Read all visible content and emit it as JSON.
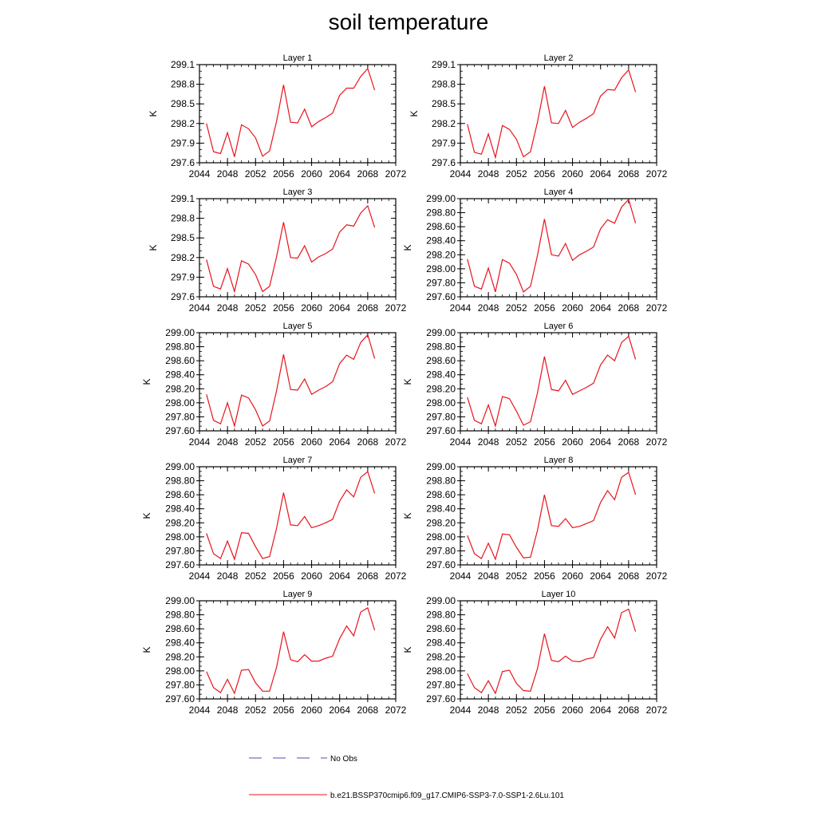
{
  "figure": {
    "title": "soil temperature"
  },
  "legend": {
    "entries": [
      {
        "label": "No Obs",
        "color": "#4d4dcc",
        "style": "dashed"
      },
      {
        "label": "b.e21.BSSP370cmip6.f09_g17.CMIP6-SSP3-7.0-SSP1-2.6Lu.101",
        "color": "#e8141c",
        "style": "solid"
      }
    ]
  },
  "chart_data": [
    {
      "type": "line",
      "title": "Layer 1",
      "xlabel": "",
      "ylabel": "K",
      "xlim": [
        2044,
        2072
      ],
      "ylim": [
        297.6,
        299.1
      ],
      "xticks": [
        2044,
        2048,
        2052,
        2056,
        2060,
        2064,
        2068,
        2072
      ],
      "yticks": [
        297.6,
        297.9,
        298.2,
        298.5,
        298.8,
        299.1
      ],
      "ytick_decimals": 1,
      "series": [
        {
          "color": "#e8141c",
          "x": [
            2045,
            2046,
            2047,
            2048,
            2049,
            2050,
            2051,
            2052,
            2053,
            2054,
            2055,
            2056,
            2057,
            2058,
            2059,
            2060,
            2061,
            2062,
            2063,
            2064,
            2065,
            2066,
            2067,
            2068,
            2069
          ],
          "y": [
            298.2,
            297.77,
            297.74,
            298.06,
            297.69,
            298.18,
            298.12,
            297.98,
            297.7,
            297.78,
            298.23,
            298.79,
            298.22,
            298.21,
            298.42,
            298.15,
            298.23,
            298.29,
            298.36,
            298.63,
            298.74,
            298.74,
            298.92,
            299.04,
            298.71
          ]
        }
      ]
    },
    {
      "type": "line",
      "title": "Layer 2",
      "xlabel": "",
      "ylabel": "K",
      "xlim": [
        2044,
        2072
      ],
      "ylim": [
        297.6,
        299.1
      ],
      "xticks": [
        2044,
        2048,
        2052,
        2056,
        2060,
        2064,
        2068,
        2072
      ],
      "yticks": [
        297.6,
        297.9,
        298.2,
        298.5,
        298.8,
        299.1
      ],
      "ytick_decimals": 1,
      "series": [
        {
          "color": "#e8141c",
          "x": [
            2045,
            2046,
            2047,
            2048,
            2049,
            2050,
            2051,
            2052,
            2053,
            2054,
            2055,
            2056,
            2057,
            2058,
            2059,
            2060,
            2061,
            2062,
            2063,
            2064,
            2065,
            2066,
            2067,
            2068,
            2069
          ],
          "y": [
            298.19,
            297.76,
            297.73,
            298.04,
            297.68,
            298.17,
            298.11,
            297.96,
            297.69,
            297.77,
            298.22,
            298.77,
            298.21,
            298.2,
            298.4,
            298.14,
            298.22,
            298.28,
            298.35,
            298.62,
            298.72,
            298.71,
            298.9,
            299.02,
            298.68
          ]
        }
      ]
    },
    {
      "type": "line",
      "title": "Layer 3",
      "xlabel": "",
      "ylabel": "K",
      "xlim": [
        2044,
        2072
      ],
      "ylim": [
        297.6,
        299.1
      ],
      "xticks": [
        2044,
        2048,
        2052,
        2056,
        2060,
        2064,
        2068,
        2072
      ],
      "yticks": [
        297.6,
        297.9,
        298.2,
        298.5,
        298.8,
        299.1
      ],
      "ytick_decimals": 1,
      "series": [
        {
          "color": "#e8141c",
          "x": [
            2045,
            2046,
            2047,
            2048,
            2049,
            2050,
            2051,
            2052,
            2053,
            2054,
            2055,
            2056,
            2057,
            2058,
            2059,
            2060,
            2061,
            2062,
            2063,
            2064,
            2065,
            2066,
            2067,
            2068,
            2069
          ],
          "y": [
            298.17,
            297.76,
            297.72,
            298.03,
            297.68,
            298.15,
            298.1,
            297.94,
            297.68,
            297.76,
            298.21,
            298.74,
            298.2,
            298.19,
            298.38,
            298.13,
            298.21,
            298.26,
            298.33,
            298.59,
            298.7,
            298.68,
            298.88,
            298.99,
            298.66
          ]
        }
      ]
    },
    {
      "type": "line",
      "title": "Layer 4",
      "xlabel": "",
      "ylabel": "K",
      "xlim": [
        2044,
        2072
      ],
      "ylim": [
        297.6,
        299.0
      ],
      "xticks": [
        2044,
        2048,
        2052,
        2056,
        2060,
        2064,
        2068,
        2072
      ],
      "yticks": [
        297.6,
        297.8,
        298.0,
        298.2,
        298.4,
        298.6,
        298.8,
        299.0
      ],
      "ytick_decimals": 2,
      "series": [
        {
          "color": "#e8141c",
          "x": [
            2045,
            2046,
            2047,
            2048,
            2049,
            2050,
            2051,
            2052,
            2053,
            2054,
            2055,
            2056,
            2057,
            2058,
            2059,
            2060,
            2061,
            2062,
            2063,
            2064,
            2065,
            2066,
            2067,
            2068,
            2069
          ],
          "y": [
            298.14,
            297.75,
            297.71,
            298.01,
            297.67,
            298.13,
            298.08,
            297.92,
            297.67,
            297.75,
            298.19,
            298.71,
            298.2,
            298.18,
            298.36,
            298.12,
            298.2,
            298.25,
            298.31,
            298.57,
            298.7,
            298.65,
            298.88,
            298.99,
            298.65
          ]
        }
      ]
    },
    {
      "type": "line",
      "title": "Layer 5",
      "xlabel": "",
      "ylabel": "K",
      "xlim": [
        2044,
        2072
      ],
      "ylim": [
        297.6,
        299.0
      ],
      "xticks": [
        2044,
        2048,
        2052,
        2056,
        2060,
        2064,
        2068,
        2072
      ],
      "yticks": [
        297.6,
        297.8,
        298.0,
        298.2,
        298.4,
        298.6,
        298.8,
        299.0
      ],
      "ytick_decimals": 2,
      "series": [
        {
          "color": "#e8141c",
          "x": [
            2045,
            2046,
            2047,
            2048,
            2049,
            2050,
            2051,
            2052,
            2053,
            2054,
            2055,
            2056,
            2057,
            2058,
            2059,
            2060,
            2061,
            2062,
            2063,
            2064,
            2065,
            2066,
            2067,
            2068,
            2069
          ],
          "y": [
            298.12,
            297.75,
            297.7,
            298.0,
            297.67,
            298.11,
            298.07,
            297.9,
            297.67,
            297.74,
            298.17,
            298.69,
            298.19,
            298.18,
            298.34,
            298.12,
            298.18,
            298.23,
            298.3,
            298.56,
            298.68,
            298.62,
            298.86,
            298.97,
            298.63
          ]
        }
      ]
    },
    {
      "type": "line",
      "title": "Layer 6",
      "xlabel": "",
      "ylabel": "K",
      "xlim": [
        2044,
        2072
      ],
      "ylim": [
        297.6,
        299.0
      ],
      "xticks": [
        2044,
        2048,
        2052,
        2056,
        2060,
        2064,
        2068,
        2072
      ],
      "yticks": [
        297.6,
        297.8,
        298.0,
        298.2,
        298.4,
        298.6,
        298.8,
        299.0
      ],
      "ytick_decimals": 2,
      "series": [
        {
          "color": "#e8141c",
          "x": [
            2045,
            2046,
            2047,
            2048,
            2049,
            2050,
            2051,
            2052,
            2053,
            2054,
            2055,
            2056,
            2057,
            2058,
            2059,
            2060,
            2061,
            2062,
            2063,
            2064,
            2065,
            2066,
            2067,
            2068,
            2069
          ],
          "y": [
            298.08,
            297.75,
            297.7,
            297.97,
            297.67,
            298.09,
            298.06,
            297.88,
            297.68,
            297.73,
            298.14,
            298.66,
            298.19,
            298.17,
            298.32,
            298.12,
            298.17,
            298.22,
            298.28,
            298.54,
            298.68,
            298.6,
            298.86,
            298.95,
            298.62
          ]
        }
      ]
    },
    {
      "type": "line",
      "title": "Layer 7",
      "xlabel": "",
      "ylabel": "K",
      "xlim": [
        2044,
        2072
      ],
      "ylim": [
        297.6,
        299.0
      ],
      "xticks": [
        2044,
        2048,
        2052,
        2056,
        2060,
        2064,
        2068,
        2072
      ],
      "yticks": [
        297.6,
        297.8,
        298.0,
        298.2,
        298.4,
        298.6,
        298.8,
        299.0
      ],
      "ytick_decimals": 2,
      "series": [
        {
          "color": "#e8141c",
          "x": [
            2045,
            2046,
            2047,
            2048,
            2049,
            2050,
            2051,
            2052,
            2053,
            2054,
            2055,
            2056,
            2057,
            2058,
            2059,
            2060,
            2061,
            2062,
            2063,
            2064,
            2065,
            2066,
            2067,
            2068,
            2069
          ],
          "y": [
            298.05,
            297.76,
            297.69,
            297.94,
            297.68,
            298.06,
            298.05,
            297.86,
            297.69,
            297.72,
            298.12,
            298.63,
            298.17,
            298.16,
            298.29,
            298.13,
            298.16,
            298.2,
            298.25,
            298.51,
            298.67,
            298.57,
            298.85,
            298.93,
            298.62
          ]
        }
      ]
    },
    {
      "type": "line",
      "title": "Layer 8",
      "xlabel": "",
      "ylabel": "K",
      "xlim": [
        2044,
        2072
      ],
      "ylim": [
        297.6,
        299.0
      ],
      "xticks": [
        2044,
        2048,
        2052,
        2056,
        2060,
        2064,
        2068,
        2072
      ],
      "yticks": [
        297.6,
        297.8,
        298.0,
        298.2,
        298.4,
        298.6,
        298.8,
        299.0
      ],
      "ytick_decimals": 2,
      "series": [
        {
          "color": "#e8141c",
          "x": [
            2045,
            2046,
            2047,
            2048,
            2049,
            2050,
            2051,
            2052,
            2053,
            2054,
            2055,
            2056,
            2057,
            2058,
            2059,
            2060,
            2061,
            2062,
            2063,
            2064,
            2065,
            2066,
            2067,
            2068,
            2069
          ],
          "y": [
            298.02,
            297.76,
            297.69,
            297.91,
            297.68,
            298.04,
            298.03,
            297.85,
            297.7,
            297.71,
            298.09,
            298.6,
            298.16,
            298.15,
            298.26,
            298.13,
            298.15,
            298.19,
            298.23,
            298.49,
            298.66,
            298.53,
            298.85,
            298.92,
            298.6
          ]
        }
      ]
    },
    {
      "type": "line",
      "title": "Layer 9",
      "xlabel": "",
      "ylabel": "K",
      "xlim": [
        2044,
        2072
      ],
      "ylim": [
        297.6,
        299.0
      ],
      "xticks": [
        2044,
        2048,
        2052,
        2056,
        2060,
        2064,
        2068,
        2072
      ],
      "yticks": [
        297.6,
        297.8,
        298.0,
        298.2,
        298.4,
        298.6,
        298.8,
        299.0
      ],
      "ytick_decimals": 2,
      "series": [
        {
          "color": "#e8141c",
          "x": [
            2045,
            2046,
            2047,
            2048,
            2049,
            2050,
            2051,
            2052,
            2053,
            2054,
            2055,
            2056,
            2057,
            2058,
            2059,
            2060,
            2061,
            2062,
            2063,
            2064,
            2065,
            2066,
            2067,
            2068,
            2069
          ],
          "y": [
            297.99,
            297.76,
            297.69,
            297.88,
            297.68,
            298.01,
            298.02,
            297.83,
            297.71,
            297.71,
            298.05,
            298.56,
            298.16,
            298.13,
            298.23,
            298.14,
            298.14,
            298.18,
            298.21,
            298.46,
            298.64,
            298.5,
            298.84,
            298.9,
            298.58
          ]
        }
      ]
    },
    {
      "type": "line",
      "title": "Layer 10",
      "xlabel": "",
      "ylabel": "K",
      "xlim": [
        2044,
        2072
      ],
      "ylim": [
        297.6,
        299.0
      ],
      "xticks": [
        2044,
        2048,
        2052,
        2056,
        2060,
        2064,
        2068,
        2072
      ],
      "yticks": [
        297.6,
        297.8,
        298.0,
        298.2,
        298.4,
        298.6,
        298.8,
        299.0
      ],
      "ytick_decimals": 2,
      "series": [
        {
          "color": "#e8141c",
          "x": [
            2045,
            2046,
            2047,
            2048,
            2049,
            2050,
            2051,
            2052,
            2053,
            2054,
            2055,
            2056,
            2057,
            2058,
            2059,
            2060,
            2061,
            2062,
            2063,
            2064,
            2065,
            2066,
            2067,
            2068,
            2069
          ],
          "y": [
            297.96,
            297.76,
            297.69,
            297.86,
            297.68,
            297.99,
            298.01,
            297.82,
            297.72,
            297.71,
            298.03,
            298.53,
            298.15,
            298.13,
            298.21,
            298.14,
            298.13,
            298.17,
            298.19,
            298.45,
            298.63,
            298.47,
            298.83,
            298.88,
            298.56
          ]
        }
      ]
    }
  ]
}
